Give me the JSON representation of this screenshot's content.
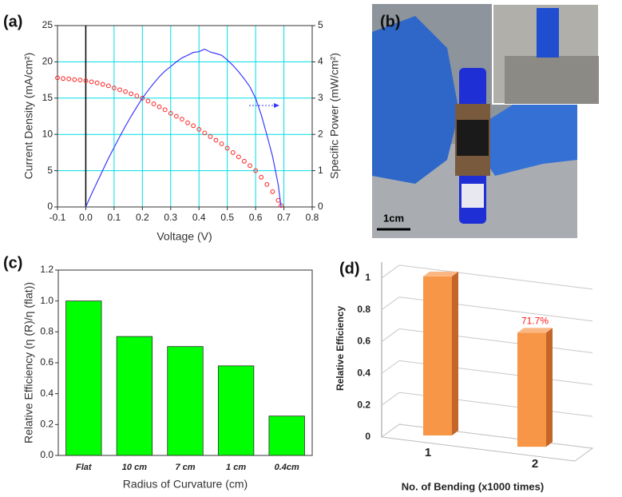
{
  "chart_data": [
    {
      "type": "line",
      "label": "(a)",
      "xlabel": "Voltage (V)",
      "ylabel": "Current Density (mA/cm²)",
      "y2label": "Specific Power (mW/cm²)",
      "xlim": [
        -0.1,
        0.8
      ],
      "xticks": [
        -0.1,
        {
          "value": 0,
          "label": "0.0"
        },
        0.1,
        0.2,
        0.3,
        0.4,
        0.5,
        0.6,
        0.7,
        0.8
      ],
      "ylim": [
        0,
        25
      ],
      "yticks": [
        0,
        5,
        10,
        15,
        20,
        25
      ],
      "y2lim": [
        0,
        5
      ],
      "y2ticks": [
        0,
        1,
        2,
        3,
        4,
        5
      ],
      "grid": true,
      "grid_color": "#00dde6",
      "reference_line_x": 0,
      "series": [
        {
          "color": "#ff2020",
          "marker": "circle",
          "x": [
            -0.1,
            -0.08,
            -0.06,
            -0.04,
            -0.02,
            0,
            0.02,
            0.04,
            0.06,
            0.08,
            0.1,
            0.12,
            0.14,
            0.16,
            0.18,
            0.2,
            0.22,
            0.24,
            0.26,
            0.28,
            0.3,
            0.32,
            0.34,
            0.36,
            0.38,
            0.4,
            0.42,
            0.44,
            0.46,
            0.48,
            0.5,
            0.52,
            0.54,
            0.56,
            0.58,
            0.6,
            0.62,
            0.64,
            0.66,
            0.68,
            0.69
          ],
          "values": [
            17.8,
            17.7,
            17.65,
            17.55,
            17.5,
            17.4,
            17.25,
            17.1,
            16.9,
            16.7,
            16.4,
            16.15,
            15.9,
            15.6,
            15.3,
            15.0,
            14.6,
            14.2,
            13.8,
            13.4,
            12.9,
            12.5,
            12.1,
            11.6,
            11.2,
            10.7,
            10.2,
            9.7,
            9.2,
            8.7,
            8.1,
            7.5,
            6.9,
            6.3,
            5.7,
            5.0,
            4.1,
            3.1,
            2.1,
            0.9,
            0.2
          ]
        },
        {
          "color": "#3a3aff",
          "marker": "none",
          "axis": "y2",
          "x": [
            0,
            0.02,
            0.04,
            0.06,
            0.08,
            0.1,
            0.12,
            0.14,
            0.16,
            0.18,
            0.2,
            0.22,
            0.24,
            0.26,
            0.28,
            0.3,
            0.32,
            0.34,
            0.36,
            0.38,
            0.4,
            0.42,
            0.44,
            0.46,
            0.48,
            0.5,
            0.52,
            0.54,
            0.56,
            0.58,
            0.6,
            0.62,
            0.64,
            0.66,
            0.68,
            0.69
          ],
          "values": [
            0,
            0.35,
            0.68,
            1.01,
            1.34,
            1.64,
            1.94,
            2.23,
            2.5,
            2.75,
            3.0,
            3.21,
            3.41,
            3.59,
            3.75,
            3.87,
            4.0,
            4.11,
            4.18,
            4.26,
            4.28,
            4.35,
            4.27,
            4.23,
            4.18,
            4.05,
            3.9,
            3.73,
            3.53,
            3.31,
            3.0,
            2.54,
            1.98,
            1.39,
            0.61,
            0
          ]
        }
      ]
    },
    {
      "type": "bar",
      "label": "(c)",
      "xlabel": "Radius of Curvature (cm)",
      "ylabel": "Relative Efficiency (η (R)/η (flat))",
      "categories": [
        "Flat",
        "10 cm",
        "7 cm",
        "1 cm",
        "0.4cm"
      ],
      "values": [
        1.0,
        0.77,
        0.705,
        0.58,
        0.255
      ],
      "color": "#00ff00",
      "ylim": [
        0,
        1.2
      ],
      "yticks": [
        {
          "value": 0,
          "label": "0.0"
        },
        0.2,
        0.4,
        0.6,
        0.8,
        {
          "value": 1,
          "label": "1.0"
        },
        1.2
      ]
    },
    {
      "type": "bar3d",
      "label": "(d)",
      "xlabel": "No. of Bending (x1000 times)",
      "ylabel": "Relative Efficiency",
      "categories": [
        "1",
        "2"
      ],
      "values": [
        1,
        0.717
      ],
      "value_labels": [
        null,
        "71.7%"
      ],
      "value_label_color": "#ff1a1a",
      "color": "#f79646",
      "ylim": [
        0,
        1.1
      ],
      "yticks": [
        0,
        0.2,
        0.4,
        0.6,
        0.8,
        1
      ]
    }
  ],
  "photo": {
    "label": "(b)",
    "scale_bar": "1cm"
  }
}
